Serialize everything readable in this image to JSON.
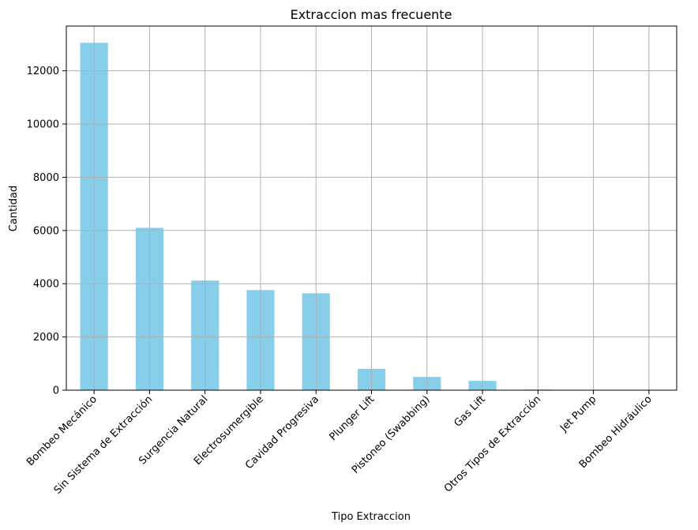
{
  "chart_data": {
    "type": "bar",
    "title": "Extraccion mas frecuente",
    "xlabel": "Tipo Extraccion",
    "ylabel": "Cantidad",
    "categories": [
      "Bombeo Mecánico",
      "Sin Sistema de Extracción",
      "Surgencia Natural",
      "Electrosumergible",
      "Cavidad Progresiva",
      "Plunger Lift",
      "Pistoneo (Swabbing)",
      "Gas Lift",
      "Otros Tipos de Extracción",
      "Jet Pump",
      "Bombeo Hidráulico"
    ],
    "values": [
      13050,
      6100,
      4120,
      3760,
      3640,
      800,
      500,
      350,
      25,
      8,
      4
    ],
    "ylim": [
      0,
      13680
    ],
    "yticks": [
      0,
      2000,
      4000,
      6000,
      8000,
      10000,
      12000
    ],
    "grid": true,
    "bar_color": "#87ceeb",
    "grid_color": "#b0b0b0"
  }
}
